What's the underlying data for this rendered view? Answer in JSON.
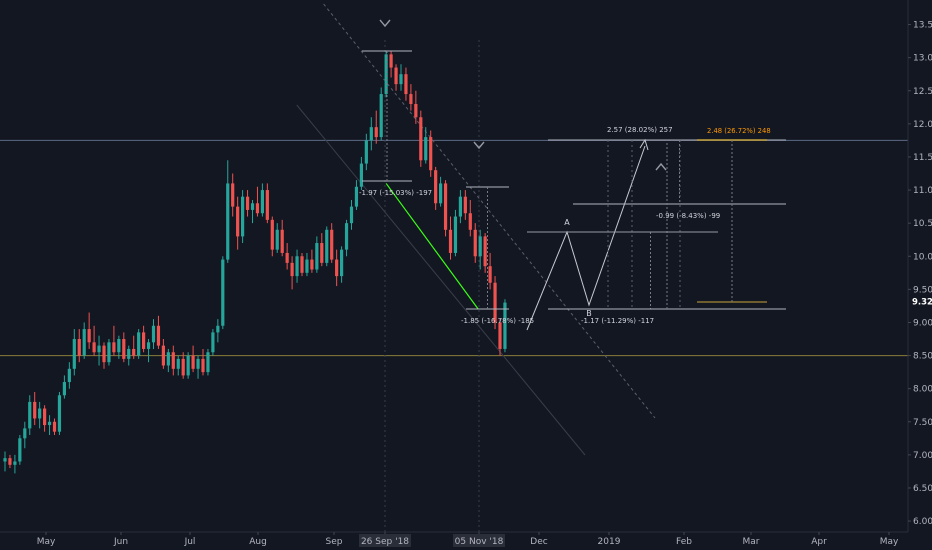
{
  "chart_data": {
    "type": "candlestick",
    "x_axis": {
      "month_labels": [
        "May",
        "Jun",
        "Jul",
        "Aug",
        "Sep",
        "26 Sep '18",
        "05 Nov '18",
        "Dec",
        "2019",
        "Feb",
        "Mar",
        "Apr",
        "May"
      ],
      "highlighted_labels": [
        "26 Sep '18",
        "05 Nov '18"
      ]
    },
    "y_axis": {
      "ticks": [
        "13.50",
        "13.00",
        "12.50",
        "12.00",
        "11.50",
        "11.00",
        "10.50",
        "10.00",
        "9.50",
        "9.00",
        "8.50",
        "8.00",
        "7.50",
        "7.00",
        "6.50",
        "6.00"
      ],
      "ylim": [
        5.85,
        13.75
      ],
      "current_price_label": "9.32"
    },
    "candles": [
      [
        6.9,
        7.05,
        6.75,
        6.95
      ],
      [
        6.95,
        7.0,
        6.8,
        6.85
      ],
      [
        6.85,
        7.0,
        6.72,
        6.9
      ],
      [
        6.9,
        7.3,
        6.85,
        7.25
      ],
      [
        7.25,
        7.5,
        7.1,
        7.4
      ],
      [
        7.4,
        7.9,
        7.3,
        7.8
      ],
      [
        7.8,
        7.95,
        7.45,
        7.55
      ],
      [
        7.55,
        7.8,
        7.4,
        7.7
      ],
      [
        7.7,
        7.75,
        7.35,
        7.45
      ],
      [
        7.45,
        7.6,
        7.3,
        7.5
      ],
      [
        7.5,
        7.55,
        7.3,
        7.35
      ],
      [
        7.35,
        7.95,
        7.3,
        7.9
      ],
      [
        7.9,
        8.2,
        7.85,
        8.1
      ],
      [
        8.1,
        8.4,
        8.0,
        8.3
      ],
      [
        8.3,
        8.9,
        8.2,
        8.75
      ],
      [
        8.75,
        8.9,
        8.4,
        8.5
      ],
      [
        8.5,
        9.0,
        8.45,
        8.9
      ],
      [
        8.9,
        9.15,
        8.6,
        8.7
      ],
      [
        8.7,
        8.95,
        8.5,
        8.55
      ],
      [
        8.55,
        8.8,
        8.35,
        8.65
      ],
      [
        8.65,
        8.7,
        8.3,
        8.4
      ],
      [
        8.4,
        8.75,
        8.35,
        8.7
      ],
      [
        8.7,
        8.95,
        8.5,
        8.55
      ],
      [
        8.55,
        8.8,
        8.45,
        8.75
      ],
      [
        8.75,
        8.85,
        8.4,
        8.45
      ],
      [
        8.45,
        8.65,
        8.35,
        8.6
      ],
      [
        8.6,
        8.8,
        8.45,
        8.5
      ],
      [
        8.5,
        8.9,
        8.45,
        8.85
      ],
      [
        8.85,
        8.95,
        8.55,
        8.6
      ],
      [
        8.6,
        8.75,
        8.4,
        8.7
      ],
      [
        8.7,
        9.05,
        8.6,
        8.95
      ],
      [
        8.95,
        9.1,
        8.6,
        8.65
      ],
      [
        8.65,
        8.75,
        8.3,
        8.35
      ],
      [
        8.35,
        8.6,
        8.25,
        8.55
      ],
      [
        8.55,
        8.65,
        8.2,
        8.3
      ],
      [
        8.3,
        8.5,
        8.2,
        8.45
      ],
      [
        8.45,
        8.55,
        8.15,
        8.2
      ],
      [
        8.2,
        8.55,
        8.15,
        8.5
      ],
      [
        8.5,
        8.65,
        8.25,
        8.3
      ],
      [
        8.3,
        8.5,
        8.15,
        8.45
      ],
      [
        8.45,
        8.6,
        8.2,
        8.25
      ],
      [
        8.25,
        8.6,
        8.2,
        8.55
      ],
      [
        8.55,
        8.9,
        8.5,
        8.85
      ],
      [
        8.85,
        9.05,
        8.7,
        8.95
      ],
      [
        8.95,
        10.0,
        8.9,
        9.95
      ],
      [
        9.95,
        11.45,
        9.9,
        11.1
      ],
      [
        11.1,
        11.25,
        10.6,
        10.75
      ],
      [
        10.75,
        10.9,
        10.1,
        10.3
      ],
      [
        10.3,
        11.0,
        10.2,
        10.9
      ],
      [
        10.9,
        11.0,
        10.6,
        10.7
      ],
      [
        10.7,
        10.85,
        10.5,
        10.8
      ],
      [
        10.8,
        11.05,
        10.6,
        10.65
      ],
      [
        10.65,
        11.1,
        10.6,
        11.0
      ],
      [
        11.0,
        11.1,
        10.5,
        10.55
      ],
      [
        10.55,
        10.6,
        10.0,
        10.1
      ],
      [
        10.1,
        10.5,
        10.05,
        10.4
      ],
      [
        10.4,
        10.55,
        10.0,
        10.05
      ],
      [
        10.05,
        10.2,
        9.8,
        9.9
      ],
      [
        9.9,
        10.0,
        9.5,
        9.7
      ],
      [
        9.7,
        10.1,
        9.6,
        10.0
      ],
      [
        10.0,
        10.05,
        9.7,
        9.75
      ],
      [
        9.75,
        10.05,
        9.7,
        9.95
      ],
      [
        9.95,
        10.1,
        9.75,
        9.8
      ],
      [
        9.8,
        10.3,
        9.75,
        10.2
      ],
      [
        10.2,
        10.35,
        9.85,
        9.9
      ],
      [
        9.9,
        10.45,
        9.85,
        10.4
      ],
      [
        10.4,
        10.5,
        9.9,
        9.95
      ],
      [
        9.95,
        10.1,
        9.55,
        9.7
      ],
      [
        9.7,
        10.15,
        9.6,
        10.1
      ],
      [
        10.1,
        10.55,
        10.0,
        10.5
      ],
      [
        10.5,
        10.85,
        10.4,
        10.75
      ],
      [
        10.75,
        11.15,
        10.7,
        11.05
      ],
      [
        11.05,
        11.5,
        11.0,
        11.4
      ],
      [
        11.4,
        11.85,
        11.3,
        11.75
      ],
      [
        11.75,
        12.1,
        11.6,
        11.95
      ],
      [
        11.95,
        12.2,
        11.7,
        11.8
      ],
      [
        11.8,
        12.55,
        11.75,
        12.45
      ],
      [
        12.45,
        13.1,
        12.4,
        13.05
      ],
      [
        13.05,
        13.1,
        12.7,
        12.85
      ],
      [
        12.85,
        12.9,
        12.5,
        12.6
      ],
      [
        12.6,
        12.9,
        12.5,
        12.75
      ],
      [
        12.75,
        12.85,
        12.35,
        12.45
      ],
      [
        12.45,
        12.6,
        12.2,
        12.3
      ],
      [
        12.3,
        12.5,
        12.0,
        12.1
      ],
      [
        12.1,
        12.2,
        11.35,
        11.45
      ],
      [
        11.45,
        11.95,
        11.4,
        11.8
      ],
      [
        11.8,
        11.9,
        11.2,
        11.3
      ],
      [
        11.3,
        11.35,
        10.7,
        10.8
      ],
      [
        10.8,
        11.2,
        10.75,
        11.1
      ],
      [
        11.1,
        11.15,
        10.3,
        10.4
      ],
      [
        10.4,
        10.6,
        9.95,
        10.05
      ],
      [
        10.05,
        10.7,
        10.0,
        10.6
      ],
      [
        10.6,
        11.0,
        10.5,
        10.9
      ],
      [
        10.9,
        11.0,
        10.55,
        10.65
      ],
      [
        10.65,
        10.85,
        10.3,
        10.4
      ],
      [
        10.4,
        10.5,
        9.9,
        10.0
      ],
      [
        10.0,
        10.4,
        9.8,
        10.3
      ],
      [
        10.3,
        10.35,
        9.75,
        9.85
      ],
      [
        9.85,
        10.05,
        9.5,
        9.6
      ],
      [
        9.6,
        9.7,
        8.9,
        9.0
      ],
      [
        9.0,
        9.05,
        8.5,
        8.6
      ],
      [
        8.6,
        9.35,
        8.55,
        9.3
      ]
    ],
    "levels": {
      "horizontal_1": 11.75,
      "horizontal_2": 8.5,
      "current": 9.32
    },
    "drawings": {
      "projection_points": [
        [
          109,
          8.75
        ],
        [
          113,
          10.35
        ],
        [
          117,
          9.2
        ],
        [
          123,
          11.72
        ]
      ],
      "point_labels": [
        "A",
        "B"
      ],
      "green_line": [
        [
          77,
          11.1
        ],
        [
          94,
          9.2
        ]
      ],
      "measurements": [
        {
          "label": "-1.97 (-15.03%) -197",
          "from": [
            71,
            13.1
          ],
          "to": [
            71,
            11.13
          ]
        },
        {
          "label": "-1.85 (-16.78%) -185",
          "from": [
            94,
            11.03
          ],
          "to": [
            94,
            9.18
          ]
        },
        {
          "label": "-1.17 (-11.29%) -117",
          "from": [
            117,
            10.35
          ],
          "to": [
            117,
            9.18
          ]
        },
        {
          "label": "-0.99 (-8.43%) -99",
          "from": [
            125,
            11.75
          ],
          "to": [
            125,
            10.76
          ]
        },
        {
          "label": "2.57 (28.02%) 257",
          "from": [
            117,
            9.18
          ],
          "to": [
            117,
            11.75
          ]
        },
        {
          "label": "2.48 (26.72%) 248",
          "from": [
            135,
            9.27
          ],
          "to": [
            135,
            11.75
          ]
        }
      ]
    }
  },
  "colors": {
    "background": "#131722",
    "up_candle": "#26a69a",
    "down_candle": "#ef5350",
    "axis_text": "#b2b5be",
    "level_line_1": "#5d6a86",
    "level_line_2": "#8a7e3a",
    "green_line": "#39ff14",
    "orange_label": "#ff9800"
  }
}
